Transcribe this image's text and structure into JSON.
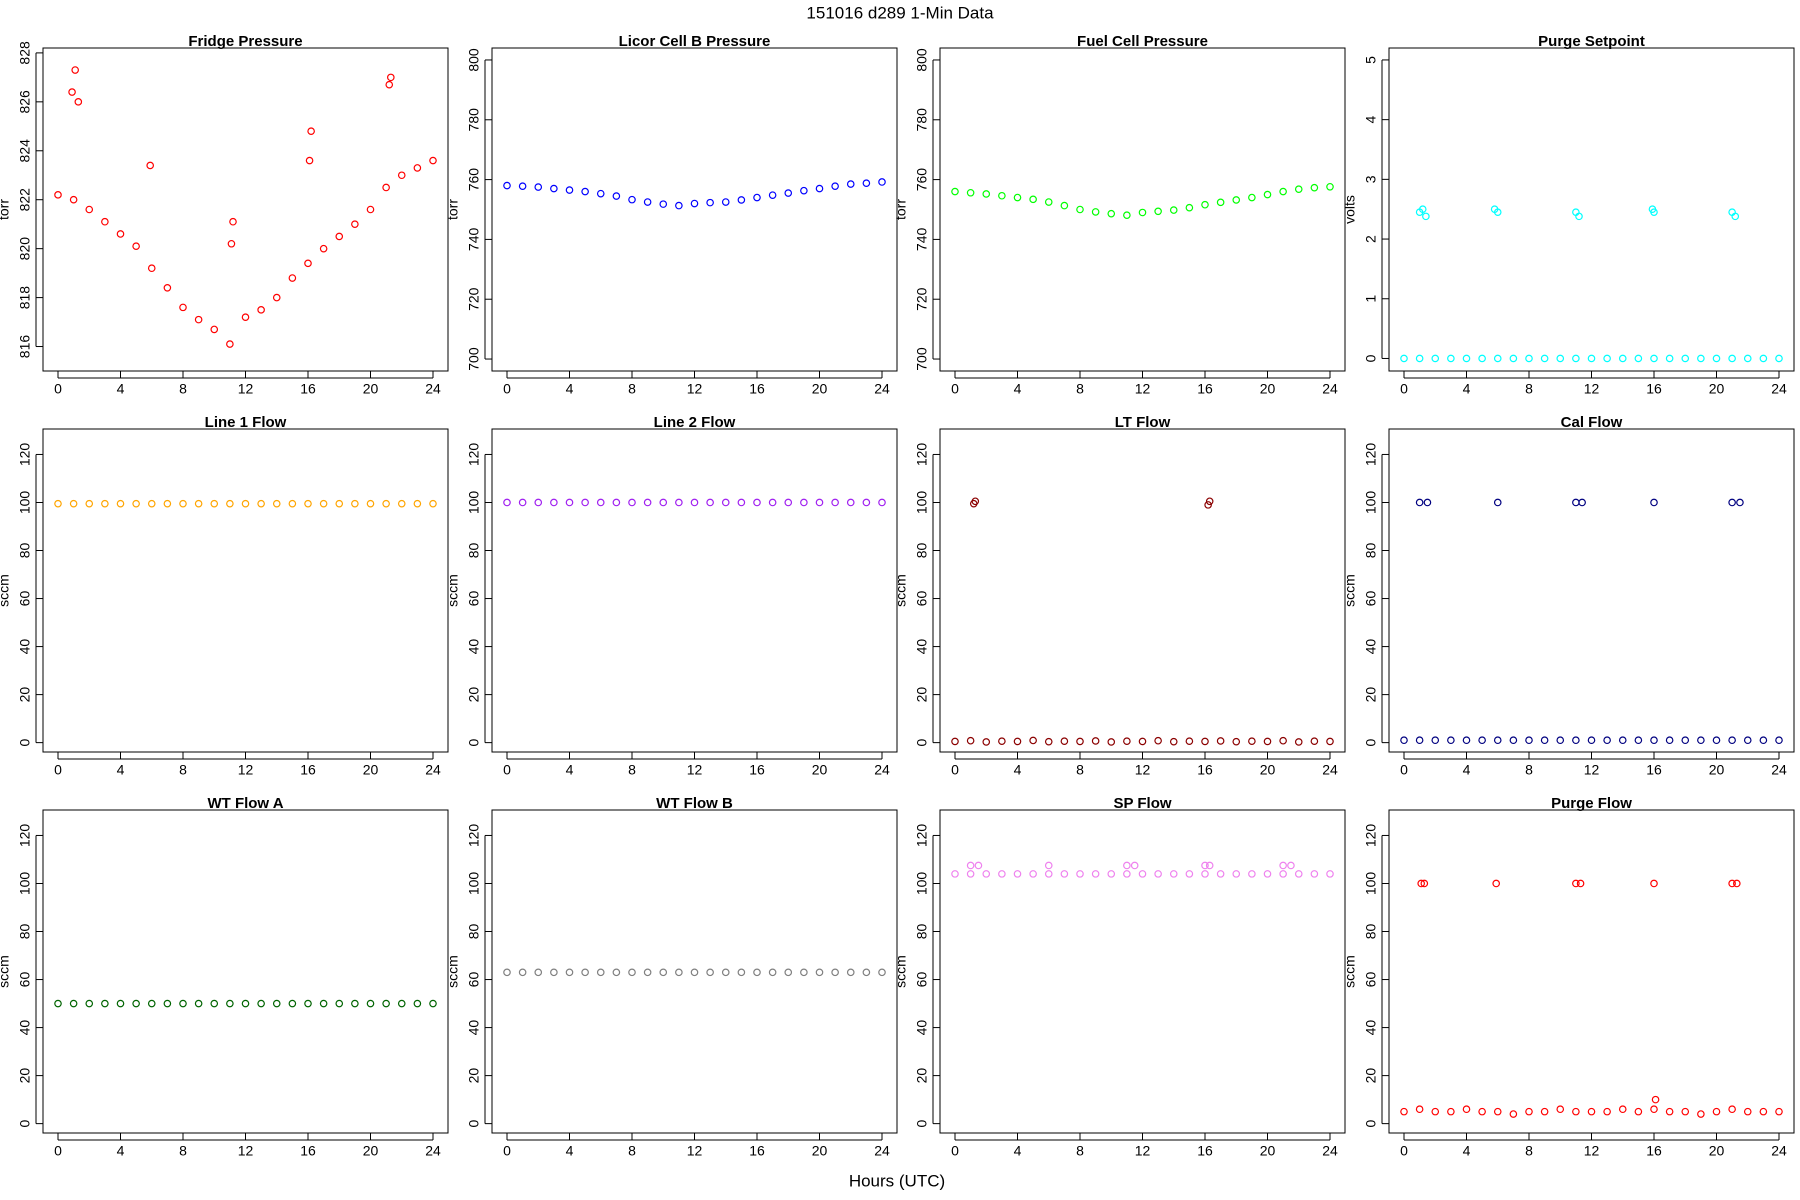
{
  "title": "151016   d289   1-Min Data",
  "x_label": "Hours (UTC)",
  "chart_data": [
    {
      "type": "scatter",
      "title": "Fridge Pressure",
      "y_label": "torr",
      "color": "#ff0000",
      "x": [
        0,
        1,
        2,
        3,
        4,
        5,
        6,
        7,
        8,
        9,
        10,
        11,
        12,
        13,
        14,
        15,
        16,
        17,
        18,
        19,
        20,
        21,
        22,
        23,
        24,
        0.9,
        1.1,
        1.3,
        5.9,
        11.1,
        11.2,
        16.1,
        16.2,
        21.2,
        21.3
      ],
      "values": [
        822.2,
        822.0,
        821.6,
        821.1,
        820.6,
        820.1,
        819.2,
        818.4,
        817.6,
        817.1,
        816.7,
        816.1,
        817.2,
        817.5,
        818.0,
        818.8,
        819.4,
        820.0,
        820.5,
        821.0,
        821.6,
        822.5,
        823.0,
        823.3,
        823.6,
        826.4,
        827.3,
        826.0,
        823.4,
        820.2,
        821.1,
        823.6,
        824.8,
        826.7,
        827.0
      ],
      "xlim": [
        -0.96,
        24.96
      ],
      "xticks": [
        0,
        4,
        8,
        12,
        16,
        20,
        24
      ],
      "ylim": [
        815.0,
        828.2
      ],
      "yticks": [
        816,
        818,
        820,
        822,
        824,
        826,
        828
      ]
    },
    {
      "type": "scatter",
      "title": "Licor Cell B Pressure",
      "y_label": "torr",
      "color": "#0000ff",
      "x": [
        0,
        1,
        2,
        3,
        4,
        5,
        6,
        7,
        8,
        9,
        10,
        11,
        12,
        13,
        14,
        15,
        16,
        17,
        18,
        19,
        20,
        21,
        22,
        23,
        24
      ],
      "values": [
        758.0,
        757.8,
        757.5,
        757.0,
        756.5,
        756.0,
        755.3,
        754.5,
        753.3,
        752.5,
        751.8,
        751.3,
        752.0,
        752.3,
        752.5,
        753.2,
        754.0,
        754.8,
        755.5,
        756.3,
        757.0,
        757.8,
        758.5,
        758.8,
        759.2
      ],
      "xlim": [
        -0.96,
        24.96
      ],
      "xticks": [
        0,
        4,
        8,
        12,
        16,
        20,
        24
      ],
      "ylim": [
        696,
        804
      ],
      "yticks": [
        700,
        720,
        740,
        760,
        780,
        800
      ]
    },
    {
      "type": "scatter",
      "title": "Fuel Cell Pressure",
      "y_label": "torr",
      "color": "#00ff00",
      "x": [
        0,
        1,
        2,
        3,
        4,
        5,
        6,
        7,
        8,
        9,
        10,
        11,
        12,
        13,
        14,
        15,
        16,
        17,
        18,
        19,
        20,
        21,
        22,
        23,
        24
      ],
      "values": [
        756.0,
        755.6,
        755.2,
        754.6,
        754.0,
        753.4,
        752.5,
        751.3,
        750.0,
        749.2,
        748.6,
        748.1,
        749.0,
        749.4,
        749.8,
        750.6,
        751.6,
        752.4,
        753.2,
        754.0,
        755.0,
        756.0,
        756.8,
        757.3,
        757.6
      ],
      "xlim": [
        -0.96,
        24.96
      ],
      "xticks": [
        0,
        4,
        8,
        12,
        16,
        20,
        24
      ],
      "ylim": [
        696,
        804
      ],
      "yticks": [
        700,
        720,
        740,
        760,
        780,
        800
      ]
    },
    {
      "type": "scatter",
      "title": "Purge Setpoint",
      "y_label": "volts",
      "color": "#00ffff",
      "x": [
        0,
        1,
        2,
        3,
        4,
        5,
        6,
        7,
        8,
        9,
        10,
        11,
        12,
        13,
        14,
        15,
        16,
        17,
        18,
        19,
        20,
        21,
        22,
        23,
        24,
        1.0,
        1.2,
        1.4,
        5.8,
        6.0,
        11.0,
        11.2,
        15.9,
        16.0,
        21.0,
        21.2
      ],
      "values": [
        0,
        0,
        0,
        0,
        0,
        0,
        0,
        0,
        0,
        0,
        0,
        0,
        0,
        0,
        0,
        0,
        0,
        0,
        0,
        0,
        0,
        0,
        0,
        0,
        0,
        2.45,
        2.5,
        2.38,
        2.5,
        2.45,
        2.45,
        2.38,
        2.5,
        2.45,
        2.45,
        2.38
      ],
      "xlim": [
        -0.96,
        24.96
      ],
      "xticks": [
        0,
        4,
        8,
        12,
        16,
        20,
        24
      ],
      "ylim": [
        -0.21,
        5.2
      ],
      "yticks": [
        0,
        1,
        2,
        3,
        4,
        5
      ]
    },
    {
      "type": "scatter",
      "title": "Line 1 Flow",
      "y_label": "sccm",
      "color": "#ffa500",
      "x": [
        0,
        1,
        2,
        3,
        4,
        5,
        6,
        7,
        8,
        9,
        10,
        11,
        12,
        13,
        14,
        15,
        16,
        17,
        18,
        19,
        20,
        21,
        22,
        23,
        24
      ],
      "values": [
        99.5,
        99.5,
        99.5,
        99.5,
        99.5,
        99.5,
        99.5,
        99.5,
        99.5,
        99.5,
        99.5,
        99.5,
        99.5,
        99.5,
        99.5,
        99.5,
        99.5,
        99.5,
        99.5,
        99.5,
        99.5,
        99.5,
        99.5,
        99.5,
        99.5
      ],
      "xlim": [
        -0.96,
        24.96
      ],
      "xticks": [
        0,
        4,
        8,
        12,
        16,
        20,
        24
      ],
      "ylim": [
        -3.9,
        130.6
      ],
      "yticks": [
        0,
        20,
        40,
        60,
        80,
        100,
        120
      ]
    },
    {
      "type": "scatter",
      "title": "Line 2 Flow",
      "y_label": "sccm",
      "color": "#a020f0",
      "x": [
        0,
        1,
        2,
        3,
        4,
        5,
        6,
        7,
        8,
        9,
        10,
        11,
        12,
        13,
        14,
        15,
        16,
        17,
        18,
        19,
        20,
        21,
        22,
        23,
        24
      ],
      "values": [
        100,
        100,
        100,
        100,
        100,
        100,
        100,
        100,
        100,
        100,
        100,
        100,
        100,
        100,
        100,
        100,
        100,
        100,
        100,
        100,
        100,
        100,
        100,
        100,
        100
      ],
      "xlim": [
        -0.96,
        24.96
      ],
      "xticks": [
        0,
        4,
        8,
        12,
        16,
        20,
        24
      ],
      "ylim": [
        -3.9,
        130.6
      ],
      "yticks": [
        0,
        20,
        40,
        60,
        80,
        100,
        120
      ]
    },
    {
      "type": "scatter",
      "title": "LT Flow",
      "y_label": "sccm",
      "color": "#8b0000",
      "x": [
        0,
        1,
        2,
        3,
        4,
        5,
        6,
        7,
        8,
        9,
        10,
        11,
        12,
        13,
        14,
        15,
        16,
        17,
        18,
        19,
        20,
        21,
        22,
        23,
        24,
        1.2,
        1.3,
        16.2,
        16.3
      ],
      "values": [
        0.5,
        0.8,
        0.3,
        0.6,
        0.5,
        0.9,
        0.4,
        0.6,
        0.5,
        0.7,
        0.3,
        0.6,
        0.5,
        0.8,
        0.4,
        0.6,
        0.5,
        0.7,
        0.4,
        0.6,
        0.5,
        0.8,
        0.3,
        0.6,
        0.5,
        99.5,
        100.5,
        99,
        100.5
      ],
      "xlim": [
        -0.96,
        24.96
      ],
      "xticks": [
        0,
        4,
        8,
        12,
        16,
        20,
        24
      ],
      "ylim": [
        -3.9,
        130.6
      ],
      "yticks": [
        0,
        20,
        40,
        60,
        80,
        100,
        120
      ]
    },
    {
      "type": "scatter",
      "title": "Cal Flow",
      "y_label": "sccm",
      "color": "#000080",
      "x": [
        0,
        1,
        2,
        3,
        4,
        5,
        6,
        7,
        8,
        9,
        10,
        11,
        12,
        13,
        14,
        15,
        16,
        17,
        18,
        19,
        20,
        21,
        22,
        23,
        24,
        1.0,
        1.5,
        6.0,
        11.0,
        11.4,
        16.0,
        21.0,
        21.5
      ],
      "values": [
        1,
        1,
        1,
        1,
        1,
        1,
        1,
        1,
        1,
        1,
        1,
        1,
        1,
        1,
        1,
        1,
        1,
        1,
        1,
        1,
        1,
        1,
        1,
        1,
        1,
        100,
        100,
        100,
        100,
        100,
        100,
        100,
        100
      ],
      "xlim": [
        -0.96,
        24.96
      ],
      "xticks": [
        0,
        4,
        8,
        12,
        16,
        20,
        24
      ],
      "ylim": [
        -3.9,
        130.6
      ],
      "yticks": [
        0,
        20,
        40,
        60,
        80,
        100,
        120
      ]
    },
    {
      "type": "scatter",
      "title": "WT Flow A",
      "y_label": "sccm",
      "color": "#006400",
      "x": [
        0,
        1,
        2,
        3,
        4,
        5,
        6,
        7,
        8,
        9,
        10,
        11,
        12,
        13,
        14,
        15,
        16,
        17,
        18,
        19,
        20,
        21,
        22,
        23,
        24
      ],
      "values": [
        50,
        50,
        50,
        50,
        50,
        50,
        50,
        50,
        50,
        50,
        50,
        50,
        50,
        50,
        50,
        50,
        50,
        50,
        50,
        50,
        50,
        50,
        50,
        50,
        50
      ],
      "xlim": [
        -0.96,
        24.96
      ],
      "xticks": [
        0,
        4,
        8,
        12,
        16,
        20,
        24
      ],
      "ylim": [
        -3.9,
        130.6
      ],
      "yticks": [
        0,
        20,
        40,
        60,
        80,
        100,
        120
      ]
    },
    {
      "type": "scatter",
      "title": "WT Flow B",
      "y_label": "sccm",
      "color": "#808080",
      "x": [
        0,
        1,
        2,
        3,
        4,
        5,
        6,
        7,
        8,
        9,
        10,
        11,
        12,
        13,
        14,
        15,
        16,
        17,
        18,
        19,
        20,
        21,
        22,
        23,
        24
      ],
      "values": [
        63,
        63,
        63,
        63,
        63,
        63,
        63,
        63,
        63,
        63,
        63,
        63,
        63,
        63,
        63,
        63,
        63,
        63,
        63,
        63,
        63,
        63,
        63,
        63,
        63
      ],
      "xlim": [
        -0.96,
        24.96
      ],
      "xticks": [
        0,
        4,
        8,
        12,
        16,
        20,
        24
      ],
      "ylim": [
        -3.9,
        130.6
      ],
      "yticks": [
        0,
        20,
        40,
        60,
        80,
        100,
        120
      ]
    },
    {
      "type": "scatter",
      "title": "SP Flow",
      "y_label": "sccm",
      "color": "#ee82ee",
      "x": [
        0,
        1,
        2,
        3,
        4,
        5,
        6,
        7,
        8,
        9,
        10,
        11,
        12,
        13,
        14,
        15,
        16,
        17,
        18,
        19,
        20,
        21,
        22,
        23,
        24,
        1.0,
        1.5,
        6.0,
        11.0,
        11.5,
        16.0,
        16.3,
        21.0,
        21.5
      ],
      "values": [
        104,
        104,
        104,
        104,
        104,
        104,
        104,
        104,
        104,
        104,
        104,
        104,
        104,
        104,
        104,
        104,
        104,
        104,
        104,
        104,
        104,
        104,
        104,
        104,
        104,
        107.5,
        107.5,
        107.5,
        107.5,
        107.5,
        107.5,
        107.5,
        107.5,
        107.5
      ],
      "xlim": [
        -0.96,
        24.96
      ],
      "xticks": [
        0,
        4,
        8,
        12,
        16,
        20,
        24
      ],
      "ylim": [
        -3.9,
        130.6
      ],
      "yticks": [
        0,
        20,
        40,
        60,
        80,
        100,
        120
      ]
    },
    {
      "type": "scatter",
      "title": "Purge Flow",
      "y_label": "sccm",
      "color": "#ff0000",
      "x": [
        0,
        1,
        2,
        3,
        4,
        5,
        6,
        7,
        8,
        9,
        10,
        11,
        12,
        13,
        14,
        15,
        16,
        17,
        18,
        19,
        20,
        21,
        22,
        23,
        24,
        1.1,
        1.3,
        5.9,
        11.0,
        11.3,
        16.0,
        21.0,
        21.3,
        16.1
      ],
      "values": [
        5,
        6,
        5,
        5,
        6,
        5,
        5,
        4,
        5,
        5,
        6,
        5,
        5,
        5,
        6,
        5,
        6,
        5,
        5,
        4,
        5,
        6,
        5,
        5,
        5,
        100,
        100,
        100,
        100,
        100,
        100,
        100,
        100,
        10
      ],
      "xlim": [
        -0.96,
        24.96
      ],
      "xticks": [
        0,
        4,
        8,
        12,
        16,
        20,
        24
      ],
      "ylim": [
        -3.9,
        130.6
      ],
      "yticks": [
        0,
        20,
        40,
        60,
        80,
        100,
        120
      ]
    }
  ]
}
